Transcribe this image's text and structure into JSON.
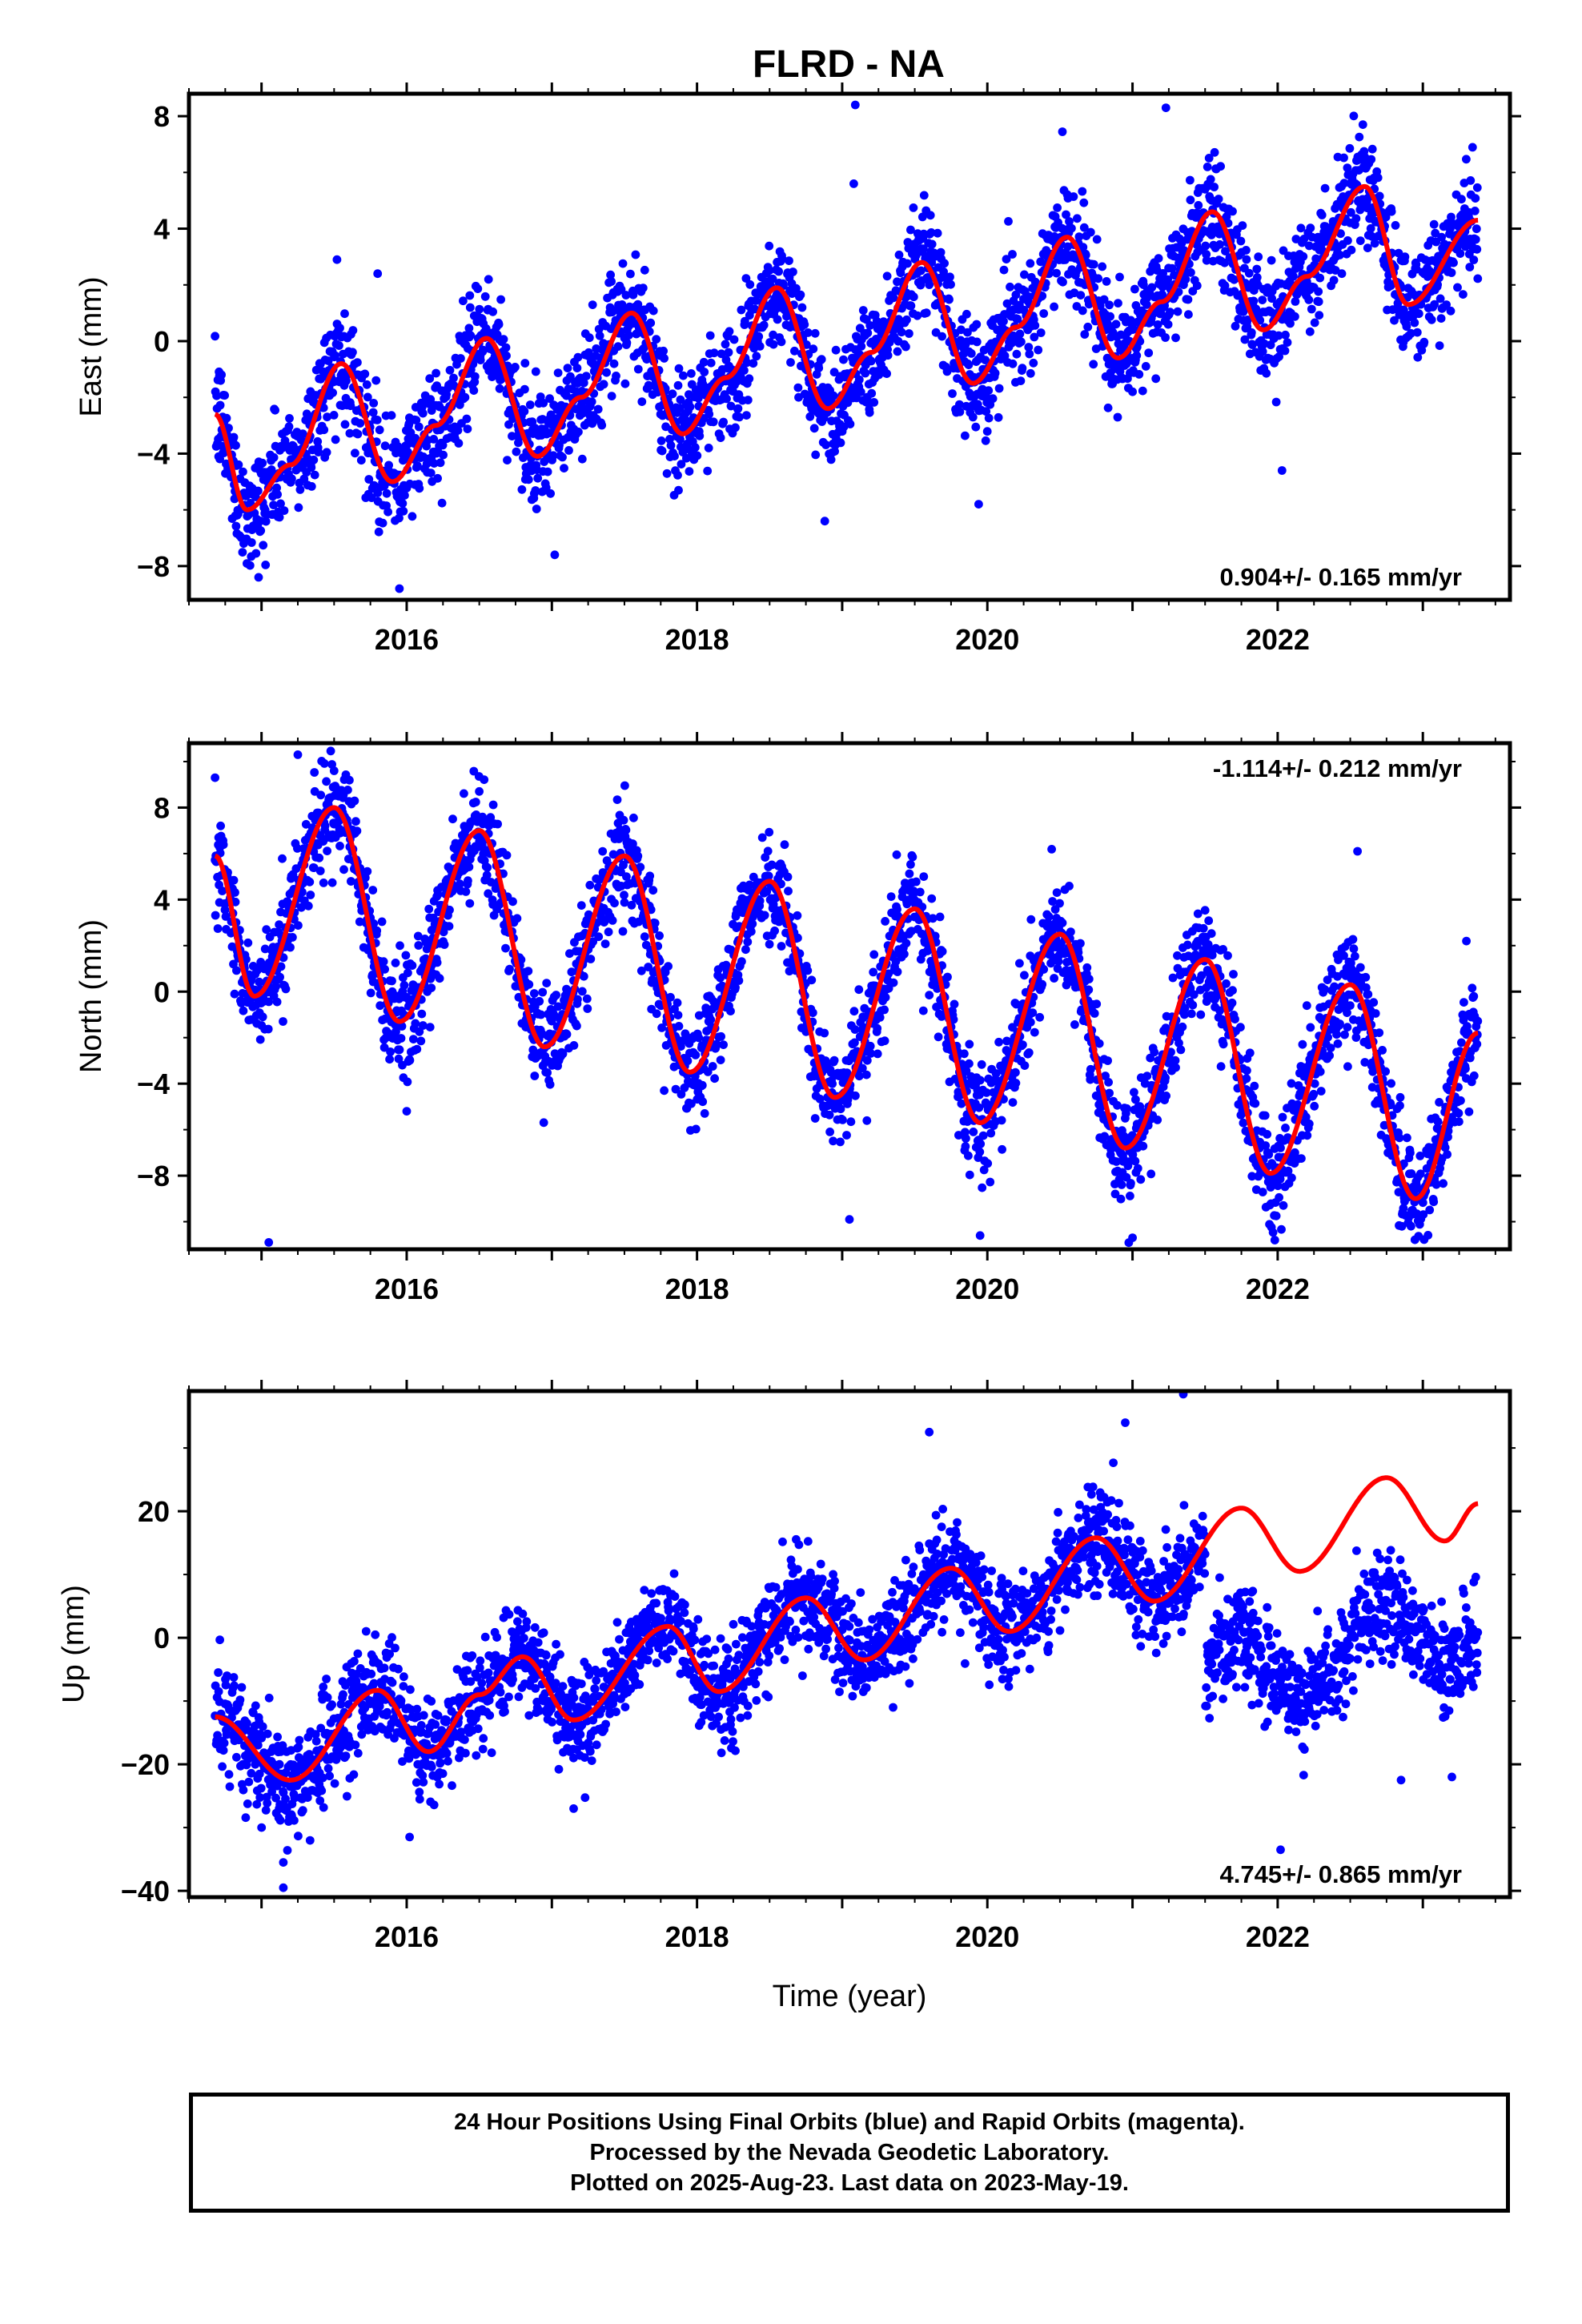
{
  "title": "FLRD - NA",
  "colors": {
    "final_orbits": "#0000ff",
    "model": "#ff0000"
  },
  "chart_data": [
    {
      "type": "scatter",
      "ylabel": "East (mm)",
      "xlim": [
        2014.5,
        2023.6
      ],
      "ylim": [
        -9.2,
        8.8
      ],
      "yticks": [
        -8,
        -4,
        0,
        4,
        8
      ],
      "xticks": [
        2016,
        2018,
        2020,
        2022
      ],
      "rate_label": "0.904+/- 0.165 mm/yr",
      "rate_position": "bottom-right",
      "data_start": 2014.68,
      "data_end": 2023.38,
      "gaps": [],
      "model": {
        "offset": -4.9,
        "trend": 0.904,
        "ref_year": 2014.68,
        "annual_amp": 2.1,
        "annual_peak": 2014.58,
        "semiannual_amp": 0.6,
        "semiannual_phase": 2014.9
      },
      "model_curve_points": [
        [
          2014.68,
          -2.6
        ],
        [
          2014.9,
          -6.0
        ],
        [
          2015.2,
          -4.4
        ],
        [
          2015.55,
          -0.8
        ],
        [
          2015.9,
          -5.0
        ],
        [
          2016.2,
          -3.0
        ],
        [
          2016.55,
          0.1
        ],
        [
          2016.9,
          -4.1
        ],
        [
          2017.2,
          -2.0
        ],
        [
          2017.55,
          1.0
        ],
        [
          2017.9,
          -3.3
        ],
        [
          2018.2,
          -1.3
        ],
        [
          2018.55,
          1.9
        ],
        [
          2018.9,
          -2.4
        ],
        [
          2019.2,
          -0.4
        ],
        [
          2019.55,
          2.8
        ],
        [
          2019.9,
          -1.5
        ],
        [
          2020.2,
          0.5
        ],
        [
          2020.55,
          3.7
        ],
        [
          2020.9,
          -0.6
        ],
        [
          2021.2,
          1.4
        ],
        [
          2021.55,
          4.6
        ],
        [
          2021.9,
          0.4
        ],
        [
          2022.2,
          2.3
        ],
        [
          2022.6,
          5.5
        ],
        [
          2022.9,
          1.3
        ],
        [
          2023.38,
          4.3
        ]
      ],
      "scatter_sigma": 1.0,
      "outliers": [
        [
          2019.09,
          8.4
        ],
        [
          2021.23,
          8.3
        ],
        [
          2019.08,
          5.6
        ],
        [
          2015.52,
          2.9
        ],
        [
          2015.8,
          2.4
        ],
        [
          2018.88,
          -6.4
        ],
        [
          2019.94,
          -5.8
        ],
        [
          2022.03,
          -4.6
        ],
        [
          2015.95,
          -8.8
        ],
        [
          2017.02,
          -7.6
        ],
        [
          2014.98,
          -8.4
        ],
        [
          2018.7,
          -2.0
        ],
        [
          2021.0,
          -1.8
        ]
      ]
    },
    {
      "type": "scatter",
      "ylabel": "North (mm)",
      "xlim": [
        2014.5,
        2023.6
      ],
      "ylim": [
        -11.2,
        10.8
      ],
      "yticks": [
        -8,
        -4,
        0,
        4,
        8
      ],
      "xticks": [
        2016,
        2018,
        2020,
        2022
      ],
      "rate_label": "-1.114+/- 0.212 mm/yr",
      "rate_position": "top-right",
      "data_start": 2014.68,
      "data_end": 2023.38,
      "gaps": [],
      "model": {
        "offset": 4.1,
        "trend": -1.114,
        "ref_year": 2014.68,
        "annual_amp": 4.3,
        "annual_peak": 2014.5,
        "semiannual_amp": 0.0,
        "semiannual_phase": 2014.5
      },
      "model_curve_points": [
        [
          2014.68,
          5.9
        ],
        [
          2014.95,
          -0.2
        ],
        [
          2015.5,
          8.0
        ],
        [
          2015.95,
          -1.3
        ],
        [
          2016.5,
          7.0
        ],
        [
          2016.95,
          -2.4
        ],
        [
          2017.5,
          5.9
        ],
        [
          2017.95,
          -3.5
        ],
        [
          2018.5,
          4.8
        ],
        [
          2018.95,
          -4.6
        ],
        [
          2019.5,
          3.6
        ],
        [
          2019.95,
          -5.7
        ],
        [
          2020.5,
          2.5
        ],
        [
          2020.95,
          -6.8
        ],
        [
          2021.5,
          1.4
        ],
        [
          2021.95,
          -7.9
        ],
        [
          2022.5,
          0.3
        ],
        [
          2022.95,
          -9.0
        ],
        [
          2023.38,
          -1.8
        ]
      ],
      "scatter_sigma": 1.15,
      "outliers": [
        [
          2015.05,
          -10.9
        ],
        [
          2015.25,
          10.3
        ],
        [
          2015.5,
          9.6
        ],
        [
          2016.5,
          8.7
        ],
        [
          2019.05,
          -9.9
        ],
        [
          2019.95,
          -10.6
        ],
        [
          2021.0,
          -10.7
        ],
        [
          2021.98,
          -10.8
        ],
        [
          2016.0,
          -5.2
        ],
        [
          2022.55,
          6.1
        ],
        [
          2023.3,
          2.2
        ],
        [
          2014.68,
          9.3
        ]
      ]
    },
    {
      "type": "scatter",
      "ylabel": "Up (mm)",
      "xlabel": "Time (year)",
      "xlim": [
        2014.5,
        2023.6
      ],
      "ylim": [
        -41,
        39
      ],
      "yticks": [
        -40,
        -20,
        0,
        20
      ],
      "xticks": [
        2016,
        2018,
        2020,
        2022
      ],
      "rate_label": "4.745+/- 0.865 mm/yr",
      "rate_position": "bottom-right",
      "data_start": 2014.68,
      "data_end": 2023.38,
      "gaps": [],
      "model": {
        "offset": -17.0,
        "trend": 4.745,
        "ref_year": 2014.68,
        "annual_amp": 4.6,
        "annual_peak": 2014.78,
        "semiannual_amp": 0.0,
        "semiannual_phase": 2014.5
      },
      "model_curve_points": [
        [
          2014.68,
          -12.5
        ],
        [
          2015.2,
          -22.5
        ],
        [
          2015.8,
          -8.3
        ],
        [
          2016.15,
          -18.0
        ],
        [
          2016.5,
          -9.0
        ],
        [
          2016.8,
          -3.0
        ],
        [
          2017.15,
          -13.0
        ],
        [
          2017.8,
          1.8
        ],
        [
          2018.15,
          -8.5
        ],
        [
          2018.75,
          6.3
        ],
        [
          2019.15,
          -3.5
        ],
        [
          2019.75,
          11.0
        ],
        [
          2020.15,
          1.0
        ],
        [
          2020.75,
          15.8
        ],
        [
          2021.15,
          5.8
        ],
        [
          2021.75,
          20.5
        ],
        [
          2022.15,
          10.5
        ],
        [
          2022.75,
          25.3
        ],
        [
          2023.15,
          15.3
        ],
        [
          2023.38,
          21.2
        ]
      ],
      "scatter_sigma": 4.0,
      "regime_shift": {
        "year": 2021.5,
        "offset_after": -20.0
      },
      "outliers": [
        [
          2021.35,
          38.5
        ],
        [
          2015.15,
          -39.5
        ],
        [
          2015.15,
          -35.5
        ],
        [
          2022.02,
          -33.5
        ],
        [
          2017.15,
          -27.0
        ],
        [
          2016.02,
          -31.5
        ],
        [
          2019.6,
          32.5
        ],
        [
          2020.95,
          34.0
        ],
        [
          2022.85,
          -22.5
        ],
        [
          2023.2,
          -22.0
        ],
        [
          2021.6,
          9.5
        ],
        [
          2015.0,
          -30.0
        ]
      ]
    }
  ],
  "caption": [
    "24 Hour Positions Using Final Orbits (blue) and Rapid Orbits (magenta).",
    "Processed by the Nevada Geodetic Laboratory.",
    "Plotted on 2025-Aug-23. Last data on 2023-May-19."
  ]
}
